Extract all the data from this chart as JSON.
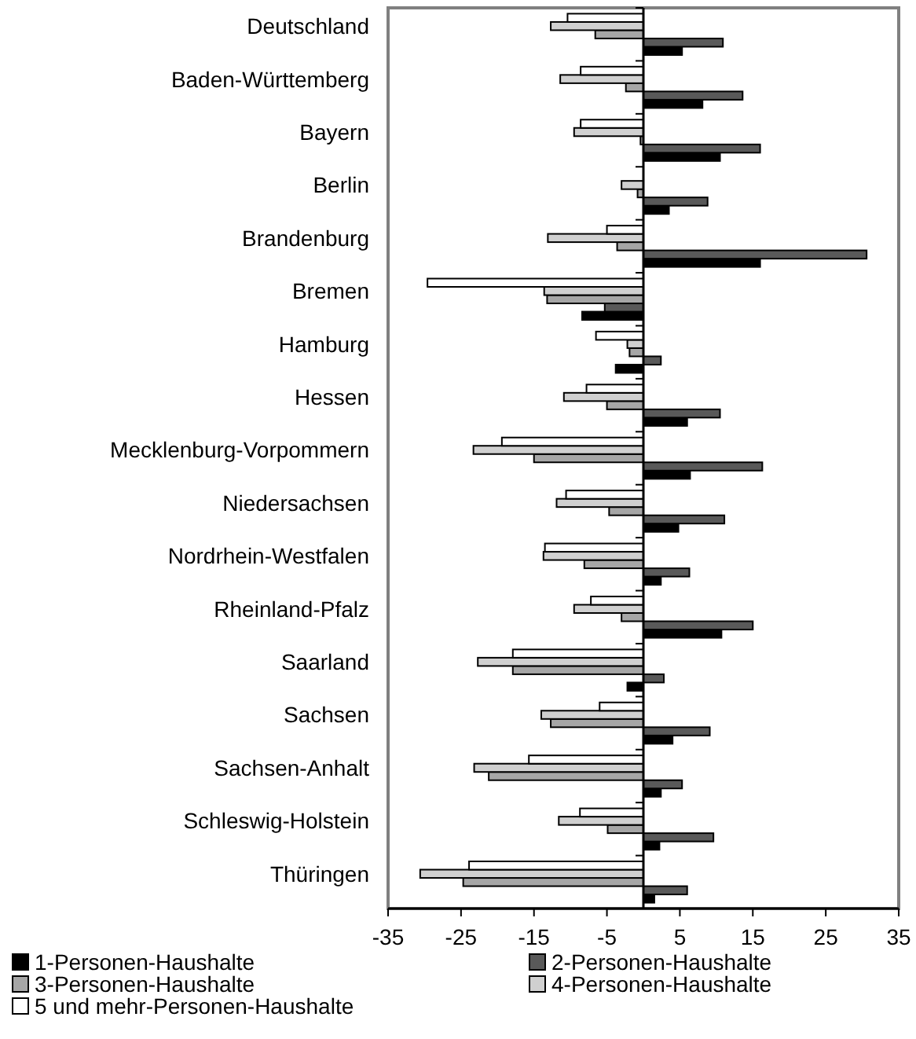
{
  "chart_data": {
    "type": "bar",
    "orientation": "horizontal",
    "categories": [
      "Deutschland",
      "Baden-Württemberg",
      "Bayern",
      "Berlin",
      "Brandenburg",
      "Bremen",
      "Hamburg",
      "Hessen",
      "Mecklenburg-Vorpommern",
      "Niedersachsen",
      "Nordrhein-Westfalen",
      "Rheinland-Pfalz",
      "Saarland",
      "Sachsen",
      "Sachsen-Anhalt",
      "Schleswig-Holstein",
      "Thüringen"
    ],
    "series": [
      {
        "name": "1-Personen-Haushalte",
        "color": "#000000",
        "values": [
          5.3,
          8.1,
          10.5,
          3.5,
          16.0,
          -8.4,
          -3.8,
          6.0,
          6.4,
          4.8,
          2.4,
          10.7,
          -2.2,
          4.0,
          2.4,
          2.2,
          1.5
        ]
      },
      {
        "name": "2-Personen-Haushalte",
        "color": "#595959",
        "values": [
          10.9,
          13.6,
          16.0,
          8.8,
          30.6,
          -5.3,
          2.4,
          10.5,
          16.3,
          11.1,
          6.3,
          15.0,
          2.8,
          9.1,
          5.3,
          9.6,
          6.0
        ]
      },
      {
        "name": "3-Personen-Haushalte",
        "color": "#a6a6a6",
        "values": [
          -6.6,
          -2.4,
          -0.4,
          -0.8,
          -3.6,
          -13.2,
          -1.9,
          -5.0,
          -15.0,
          -4.7,
          -8.1,
          -3.0,
          -17.9,
          -12.7,
          -21.2,
          -4.9,
          -24.7
        ]
      },
      {
        "name": "4-Personen-Haushalte",
        "color": "#d0d0d0",
        "values": [
          -12.7,
          -11.4,
          -9.5,
          -3.0,
          -13.1,
          -13.6,
          -2.2,
          -10.9,
          -23.3,
          -11.9,
          -13.7,
          -9.5,
          -22.7,
          -14.0,
          -23.2,
          -11.6,
          -30.6
        ]
      },
      {
        "name": "5 und mehr-Personen-Haushalte",
        "color": "#ffffff",
        "values": [
          -10.4,
          -8.6,
          -8.6,
          0,
          -5.0,
          -29.6,
          -6.5,
          -7.8,
          -19.4,
          -10.6,
          -13.5,
          -7.2,
          -17.9,
          -6.0,
          -15.7,
          -8.7,
          -23.9
        ]
      }
    ],
    "xlim": [
      -35,
      35
    ],
    "xticks": [
      -35,
      -25,
      -15,
      -5,
      5,
      15,
      25,
      35
    ],
    "grid": false,
    "legend": "bottom"
  }
}
